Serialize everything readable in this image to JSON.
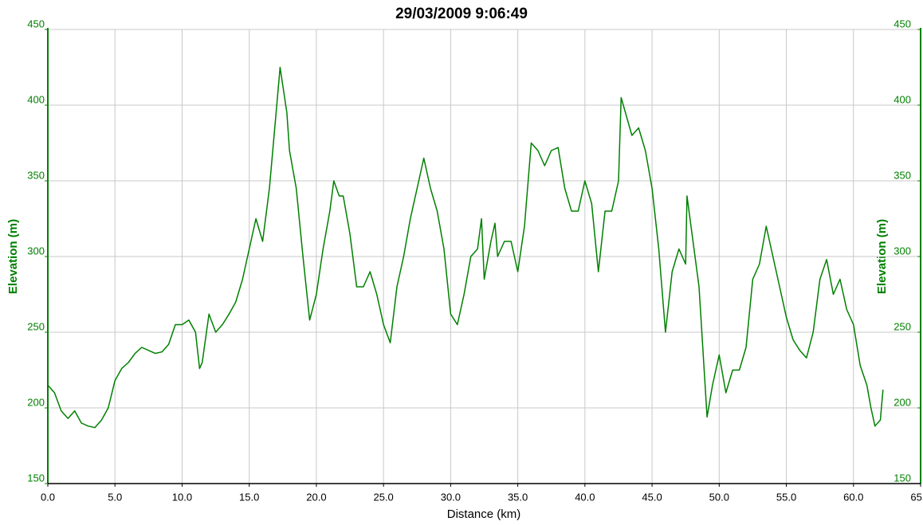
{
  "chart_data": {
    "type": "line",
    "title": "29/03/2009 9:06:49",
    "x_label": "Distance (km)",
    "y_label": "Elevation (m)",
    "y2_label": "Elevation (m)",
    "axis_color": "#008000",
    "grid": true,
    "xlim": [
      0,
      65
    ],
    "xticks": [
      {
        "value": 0,
        "label": "0.0"
      },
      {
        "value": 5,
        "label": "5.0"
      },
      {
        "value": 10,
        "label": "10.0"
      },
      {
        "value": 15,
        "label": "15.0"
      },
      {
        "value": 20,
        "label": "20.0"
      },
      {
        "value": 25,
        "label": "25.0"
      },
      {
        "value": 30,
        "label": "30.0"
      },
      {
        "value": 35,
        "label": "35.0"
      },
      {
        "value": 40,
        "label": "40.0"
      },
      {
        "value": 45,
        "label": "45.0"
      },
      {
        "value": 50,
        "label": "50.0"
      },
      {
        "value": 55,
        "label": "55.0"
      },
      {
        "value": 60,
        "label": "60.0"
      },
      {
        "value": 65,
        "label": "65.0"
      }
    ],
    "ylim": [
      150,
      450
    ],
    "yticks": [
      150,
      200,
      250,
      300,
      350,
      400,
      450
    ],
    "y2lim": [
      150,
      450
    ],
    "y2ticks": [
      150,
      200,
      250,
      300,
      350,
      400,
      450
    ],
    "x": [
      0,
      0.5,
      1,
      1.5,
      2,
      2.5,
      3,
      3.5,
      4,
      4.5,
      5,
      5.5,
      6,
      6.5,
      7,
      7.5,
      8,
      8.5,
      9,
      9.5,
      10,
      10.5,
      11,
      11.3,
      11.5,
      12,
      12.5,
      13,
      13.5,
      14,
      14.5,
      15,
      15.5,
      16,
      16.5,
      17,
      17.3,
      17.8,
      18,
      18.5,
      19,
      19.5,
      20,
      20.5,
      21,
      21.3,
      21.7,
      22,
      22.5,
      23,
      23.5,
      24,
      24.5,
      25,
      25.5,
      26,
      26.5,
      27,
      27.5,
      28,
      28.5,
      29,
      29.5,
      30,
      30.5,
      31,
      31.5,
      32,
      32.3,
      32.5,
      33,
      33.3,
      33.5,
      34,
      34.5,
      35,
      35.5,
      36,
      36.5,
      37,
      37.5,
      38,
      38.5,
      39,
      39.5,
      40,
      40.5,
      41,
      41.5,
      42,
      42.5,
      42.7,
      43.5,
      44,
      44.5,
      45,
      45.5,
      46,
      46.5,
      47,
      47.5,
      47.6,
      48.5,
      49.1,
      49.5,
      50,
      50.5,
      51,
      51.5,
      52,
      52.5,
      53,
      53.5,
      54,
      54.5,
      55,
      55.5,
      56,
      56.5,
      57,
      57.5,
      58,
      58.5,
      59,
      59.5,
      60,
      60.5,
      61,
      61.3,
      61.6,
      62,
      62.2
    ],
    "series": [
      {
        "name": "Elevation",
        "color": "#008000",
        "values": [
          215,
          210,
          198,
          193,
          198,
          190,
          188,
          187,
          192,
          200,
          218,
          226,
          230,
          236,
          240,
          238,
          236,
          237,
          242,
          255,
          255,
          258,
          250,
          226,
          230,
          262,
          250,
          255,
          262,
          270,
          285,
          305,
          325,
          310,
          345,
          395,
          425,
          395,
          370,
          345,
          300,
          258,
          275,
          305,
          330,
          350,
          340,
          340,
          315,
          280,
          280,
          290,
          275,
          255,
          243,
          280,
          300,
          325,
          345,
          365,
          345,
          330,
          305,
          262,
          255,
          275,
          300,
          305,
          325,
          285,
          310,
          322,
          300,
          310,
          310,
          290,
          320,
          375,
          370,
          360,
          370,
          372,
          345,
          330,
          330,
          350,
          335,
          290,
          330,
          330,
          350,
          405,
          380,
          385,
          370,
          345,
          305,
          250,
          290,
          305,
          295,
          340,
          280,
          194,
          215,
          235,
          210,
          225,
          225,
          240,
          285,
          295,
          320,
          300,
          280,
          260,
          245,
          238,
          233,
          250,
          285,
          298,
          275,
          285,
          265,
          255,
          228,
          215,
          200,
          188,
          192,
          212
        ]
      }
    ]
  }
}
